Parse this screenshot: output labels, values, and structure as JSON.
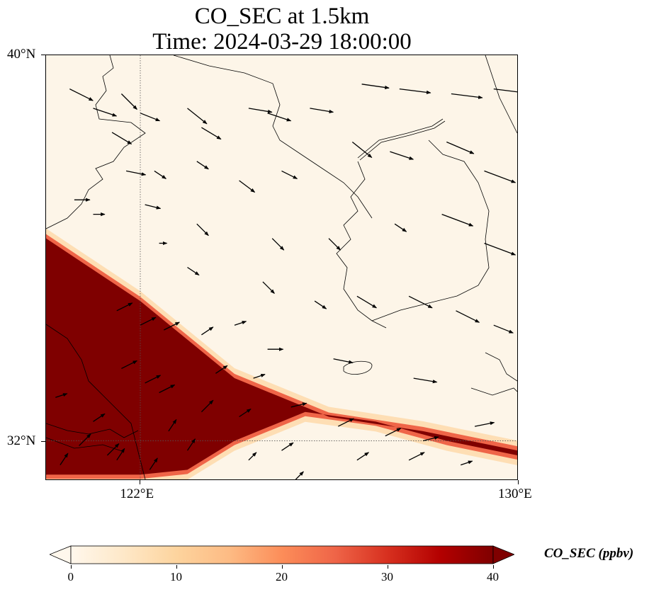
{
  "title": {
    "line1": "CO_SEC at 1.5km",
    "line2": "Time: 2024-03-29 18:00:00"
  },
  "map": {
    "lat_range": [
      31.2,
      40.0
    ],
    "lon_range": [
      120.0,
      130.0
    ],
    "gridline_lon": 122,
    "gridline_lat": 32,
    "y_ticks": [
      {
        "value": 40,
        "label": "40°N"
      },
      {
        "value": 32,
        "label": "32°N"
      }
    ],
    "x_ticks": [
      {
        "value": 122,
        "label": "122°E"
      },
      {
        "value": 130,
        "label": "130°E"
      }
    ],
    "plume": {
      "description_units": "ppbv",
      "max_value": 40,
      "band_north_edge": [
        [
          120.0,
          36.2
        ],
        [
          122.0,
          34.9
        ],
        [
          124.0,
          33.3
        ],
        [
          126.0,
          32.5
        ],
        [
          128.0,
          32.2
        ],
        [
          130.0,
          31.8
        ]
      ],
      "band_south_edge": [
        [
          120.0,
          31.3
        ],
        [
          122.0,
          31.3
        ],
        [
          123.0,
          31.4
        ],
        [
          124.0,
          32.0
        ],
        [
          125.5,
          32.6
        ],
        [
          127.0,
          32.4
        ],
        [
          128.5,
          32.0
        ],
        [
          130.0,
          31.7
        ]
      ]
    },
    "wind_arrows": [
      [
        120.5,
        39.3,
        0.6,
        -0.3
      ],
      [
        121.0,
        38.9,
        0.6,
        -0.2
      ],
      [
        121.4,
        38.4,
        0.5,
        -0.3
      ],
      [
        121.6,
        39.2,
        0.4,
        -0.4
      ],
      [
        122.0,
        38.8,
        0.5,
        -0.2
      ],
      [
        123.0,
        38.9,
        0.5,
        -0.4
      ],
      [
        123.3,
        38.5,
        0.5,
        -0.3
      ],
      [
        124.3,
        38.9,
        0.6,
        -0.1
      ],
      [
        124.7,
        38.8,
        0.6,
        -0.2
      ],
      [
        125.6,
        38.9,
        0.6,
        -0.1
      ],
      [
        126.7,
        39.4,
        0.7,
        -0.1
      ],
      [
        127.5,
        39.3,
        0.8,
        -0.1
      ],
      [
        128.6,
        39.2,
        0.8,
        -0.1
      ],
      [
        129.5,
        39.3,
        0.8,
        -0.1
      ],
      [
        121.7,
        37.6,
        0.5,
        -0.1
      ],
      [
        122.3,
        37.6,
        0.3,
        -0.2
      ],
      [
        123.2,
        37.8,
        0.3,
        -0.2
      ],
      [
        124.1,
        37.4,
        0.4,
        -0.3
      ],
      [
        125.0,
        37.6,
        0.4,
        -0.2
      ],
      [
        126.5,
        38.2,
        0.5,
        -0.4
      ],
      [
        127.3,
        38.0,
        0.6,
        -0.2
      ],
      [
        128.5,
        38.2,
        0.7,
        -0.3
      ],
      [
        129.3,
        37.6,
        0.8,
        -0.3
      ],
      [
        120.6,
        37.0,
        0.4,
        0.0
      ],
      [
        121.0,
        36.7,
        0.3,
        0.0
      ],
      [
        122.1,
        36.9,
        0.4,
        -0.1
      ],
      [
        123.2,
        36.5,
        0.3,
        -0.3
      ],
      [
        124.8,
        36.2,
        0.3,
        -0.3
      ],
      [
        126.0,
        36.2,
        0.3,
        -0.3
      ],
      [
        127.4,
        36.5,
        0.3,
        -0.2
      ],
      [
        128.4,
        36.7,
        0.8,
        -0.3
      ],
      [
        129.3,
        36.1,
        0.8,
        -0.3
      ],
      [
        122.4,
        36.1,
        0.2,
        0.0
      ],
      [
        123.0,
        35.6,
        0.3,
        -0.2
      ],
      [
        124.6,
        35.3,
        0.3,
        -0.3
      ],
      [
        125.7,
        34.9,
        0.3,
        -0.2
      ],
      [
        126.6,
        35.0,
        0.5,
        -0.3
      ],
      [
        127.7,
        35.0,
        0.6,
        -0.3
      ],
      [
        128.7,
        34.7,
        0.6,
        -0.3
      ],
      [
        129.5,
        34.4,
        0.5,
        -0.2
      ],
      [
        121.5,
        34.7,
        0.4,
        0.2
      ],
      [
        122.0,
        34.4,
        0.4,
        0.2
      ],
      [
        122.5,
        34.3,
        0.4,
        0.2
      ],
      [
        123.3,
        34.2,
        0.3,
        0.2
      ],
      [
        124.0,
        34.4,
        0.3,
        0.1
      ],
      [
        124.7,
        33.9,
        0.4,
        0.0
      ],
      [
        126.1,
        33.7,
        0.5,
        -0.1
      ],
      [
        127.8,
        33.3,
        0.6,
        -0.1
      ],
      [
        121.6,
        33.5,
        0.4,
        0.2
      ],
      [
        122.1,
        33.2,
        0.4,
        0.2
      ],
      [
        122.4,
        33.0,
        0.4,
        0.2
      ],
      [
        123.6,
        33.4,
        0.3,
        0.2
      ],
      [
        124.4,
        33.3,
        0.3,
        0.1
      ],
      [
        125.2,
        32.7,
        0.4,
        0.1
      ],
      [
        126.2,
        32.3,
        0.4,
        0.2
      ],
      [
        127.2,
        32.1,
        0.4,
        0.2
      ],
      [
        128.0,
        32.0,
        0.4,
        0.1
      ],
      [
        129.1,
        32.3,
        0.5,
        0.1
      ],
      [
        120.2,
        32.9,
        0.3,
        0.1
      ],
      [
        121.0,
        32.4,
        0.3,
        0.2
      ],
      [
        121.3,
        31.7,
        0.3,
        0.3
      ],
      [
        122.2,
        31.4,
        0.2,
        0.3
      ],
      [
        122.6,
        32.2,
        0.2,
        0.3
      ],
      [
        123.0,
        31.8,
        0.2,
        0.3
      ],
      [
        123.3,
        32.6,
        0.3,
        0.3
      ],
      [
        124.1,
        32.5,
        0.3,
        0.2
      ],
      [
        125.0,
        31.8,
        0.3,
        0.2
      ],
      [
        126.6,
        31.6,
        0.3,
        0.2
      ],
      [
        127.7,
        31.6,
        0.4,
        0.2
      ],
      [
        128.8,
        31.5,
        0.3,
        0.1
      ],
      [
        120.3,
        31.5,
        0.2,
        0.3
      ],
      [
        120.7,
        31.9,
        0.3,
        0.3
      ],
      [
        121.5,
        31.6,
        0.2,
        0.3
      ],
      [
        124.3,
        31.6,
        0.2,
        0.2
      ],
      [
        125.3,
        31.2,
        0.2,
        0.2
      ]
    ]
  },
  "colorbar": {
    "label": "CO_SEC (ppbv)",
    "min": 0,
    "max": 40,
    "ticks": [
      {
        "value": 0,
        "label": "0"
      },
      {
        "value": 10,
        "label": "10"
      },
      {
        "value": 20,
        "label": "20"
      },
      {
        "value": 30,
        "label": "30"
      },
      {
        "value": 40,
        "label": "40"
      }
    ],
    "colors": [
      "#fff7ec",
      "#fee8c8",
      "#fdd49e",
      "#fdbb84",
      "#fc8d59",
      "#ef6548",
      "#d7301f",
      "#b30000",
      "#7f0000"
    ]
  }
}
